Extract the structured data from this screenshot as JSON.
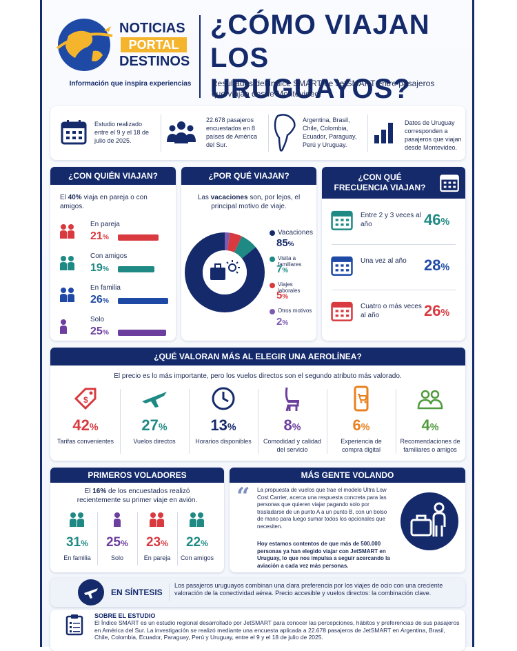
{
  "brand": {
    "logo_line1": "NOTICIAS",
    "logo_line2": "PORTAL",
    "logo_line3": "DESTINOS",
    "tagline": "Información que inspira experiencias"
  },
  "header": {
    "title_line1": "¿CÓMO VIAJAN",
    "title_line2": "LOS URUGUAYOS?",
    "subtitle": "Resultados del Índice SMART de JetSMART entre pasajeros que viajan desde Montevideo."
  },
  "facts": [
    {
      "text": "Estudio realizado entre el 9 y el 18 de julio de 2025."
    },
    {
      "text": "22.678 pasajeros encuestados en 8 países de América del Sur."
    },
    {
      "text": "Argentina, Brasil, Chile, Colombia, Ecuador, Paraguay, Perú y Uruguay."
    },
    {
      "text": "Datos de Uruguay corresponden a pasajeros que viajan desde Montevideo."
    }
  ],
  "con_quien": {
    "title": "¿CON QUIÉN VIAJAN?",
    "intro_pre": "El ",
    "intro_bold": "40%",
    "intro_post": " viaja en pareja o con amigos.",
    "items": [
      {
        "label": "En pareja",
        "value": 21,
        "color": "#d83a40"
      },
      {
        "label": "Con amigos",
        "value": 19,
        "color": "#1f8a84"
      },
      {
        "label": "En familia",
        "value": 26,
        "color": "#1e4aa6"
      },
      {
        "label": "Solo",
        "value": 25,
        "color": "#6c3e9e"
      }
    ]
  },
  "por_que": {
    "title": "¿POR QUÉ VIAJAN?",
    "intro_pre": "Las ",
    "intro_bold": "vacaciones",
    "intro_post": " son, por lejos, el principal motivo de viaje.",
    "items": [
      {
        "label": "Vacaciones",
        "value": 85,
        "color": "#142a6b"
      },
      {
        "label": "Visita a familiares",
        "value": 7,
        "color": "#1f8a84"
      },
      {
        "label": "Viajes laborales",
        "value": 5,
        "color": "#d83a40"
      },
      {
        "label": "Otros motivos",
        "value": 2,
        "color": "#7a5bb0"
      }
    ]
  },
  "frecuencia": {
    "title": "¿CON QUÉ FRECUENCIA VIAJAN?",
    "items": [
      {
        "label": "Entre 2 y 3 veces al año",
        "value": 46,
        "color": "#1f8a84"
      },
      {
        "label": "Una vez al año",
        "value": 28,
        "color": "#1e4aa6"
      },
      {
        "label": "Cuatro o más veces al año",
        "value": 26,
        "color": "#d83a40"
      }
    ]
  },
  "valoran": {
    "title": "¿QUÉ VALORAN MÁS AL ELEGIR UNA AEROLÍNEA?",
    "intro": "El precio es lo más importante, pero los vuelos directos son el segundo atributo más valorado.",
    "items": [
      {
        "label": "Tarifas convenientes",
        "value": 42,
        "icon": "price-tag-icon",
        "color": "#d83a40"
      },
      {
        "label": "Vuelos directos",
        "value": 27,
        "icon": "airplane-icon",
        "color": "#1f8a84"
      },
      {
        "label": "Horarios disponibles",
        "value": 13,
        "icon": "clock-icon",
        "color": "#142a6b"
      },
      {
        "label": "Comodidad y calidad del servicio",
        "value": 8,
        "icon": "seat-icon",
        "color": "#6c3e9e"
      },
      {
        "label": "Experiencia de compra digital",
        "value": 6,
        "icon": "phone-cart-icon",
        "color": "#e8801f"
      },
      {
        "label": "Recomendaciones de familiares o amigos",
        "value": 4,
        "icon": "people-icon",
        "color": "#4f9a3c"
      }
    ]
  },
  "primeros": {
    "title": "PRIMEROS VOLADORES",
    "intro_pre": "El ",
    "intro_bold": "16%",
    "intro_post": " de los encuestados realizó recientemente su primer viaje en avión.",
    "items": [
      {
        "label": "En familia",
        "value": 31,
        "color": "#1f8a84"
      },
      {
        "label": "Solo",
        "value": 25,
        "color": "#6c3e9e"
      },
      {
        "label": "En pareja",
        "value": 23,
        "color": "#d83a40"
      },
      {
        "label": "Con amigos",
        "value": 22,
        "color": "#1f8a84"
      }
    ]
  },
  "mas_gente": {
    "title": "MÁS GENTE VOLANDO",
    "quote": "La propuesta de vuelos que trae el modelo Ultra Low Cost Carrier, acerca una respuesta concreta para las personas que quieren viajar pagando solo por trasladarse de un punto A a un punto B, con un bolso de mano para luego sumar todos los opcionales que necesiten.",
    "quote_bold": "Hoy estamos contentos de que más de 500.000 personas ya han elegido viajar con JetSMART en Uruguay, lo que nos impulsa a seguir acercando la aviación a cada vez más personas."
  },
  "sintesis": {
    "title": "EN SÍNTESIS",
    "text": "Los pasajeros uruguayos combinan una clara preferencia por los viajes de ocio con una creciente valoración de la conectividad aérea. Precio accesible y vuelos directos: la combinación clave."
  },
  "sobre": {
    "title": "SOBRE EL ESTUDIO",
    "text": "El Índice SMART es un estudio regional desarrollado por JetSMART para conocer las percepciones, hábitos y preferencias de sus pasajeros en América del Sur. La investigación se realizó mediante una encuesta aplicada a 22.678 pasajeros de JetSMART en Argentina, Brasil, Chile, Colombia, Ecuador, Paraguay, Perú y Uruguay, entre el 9 y el 18 de julio de 2025."
  }
}
